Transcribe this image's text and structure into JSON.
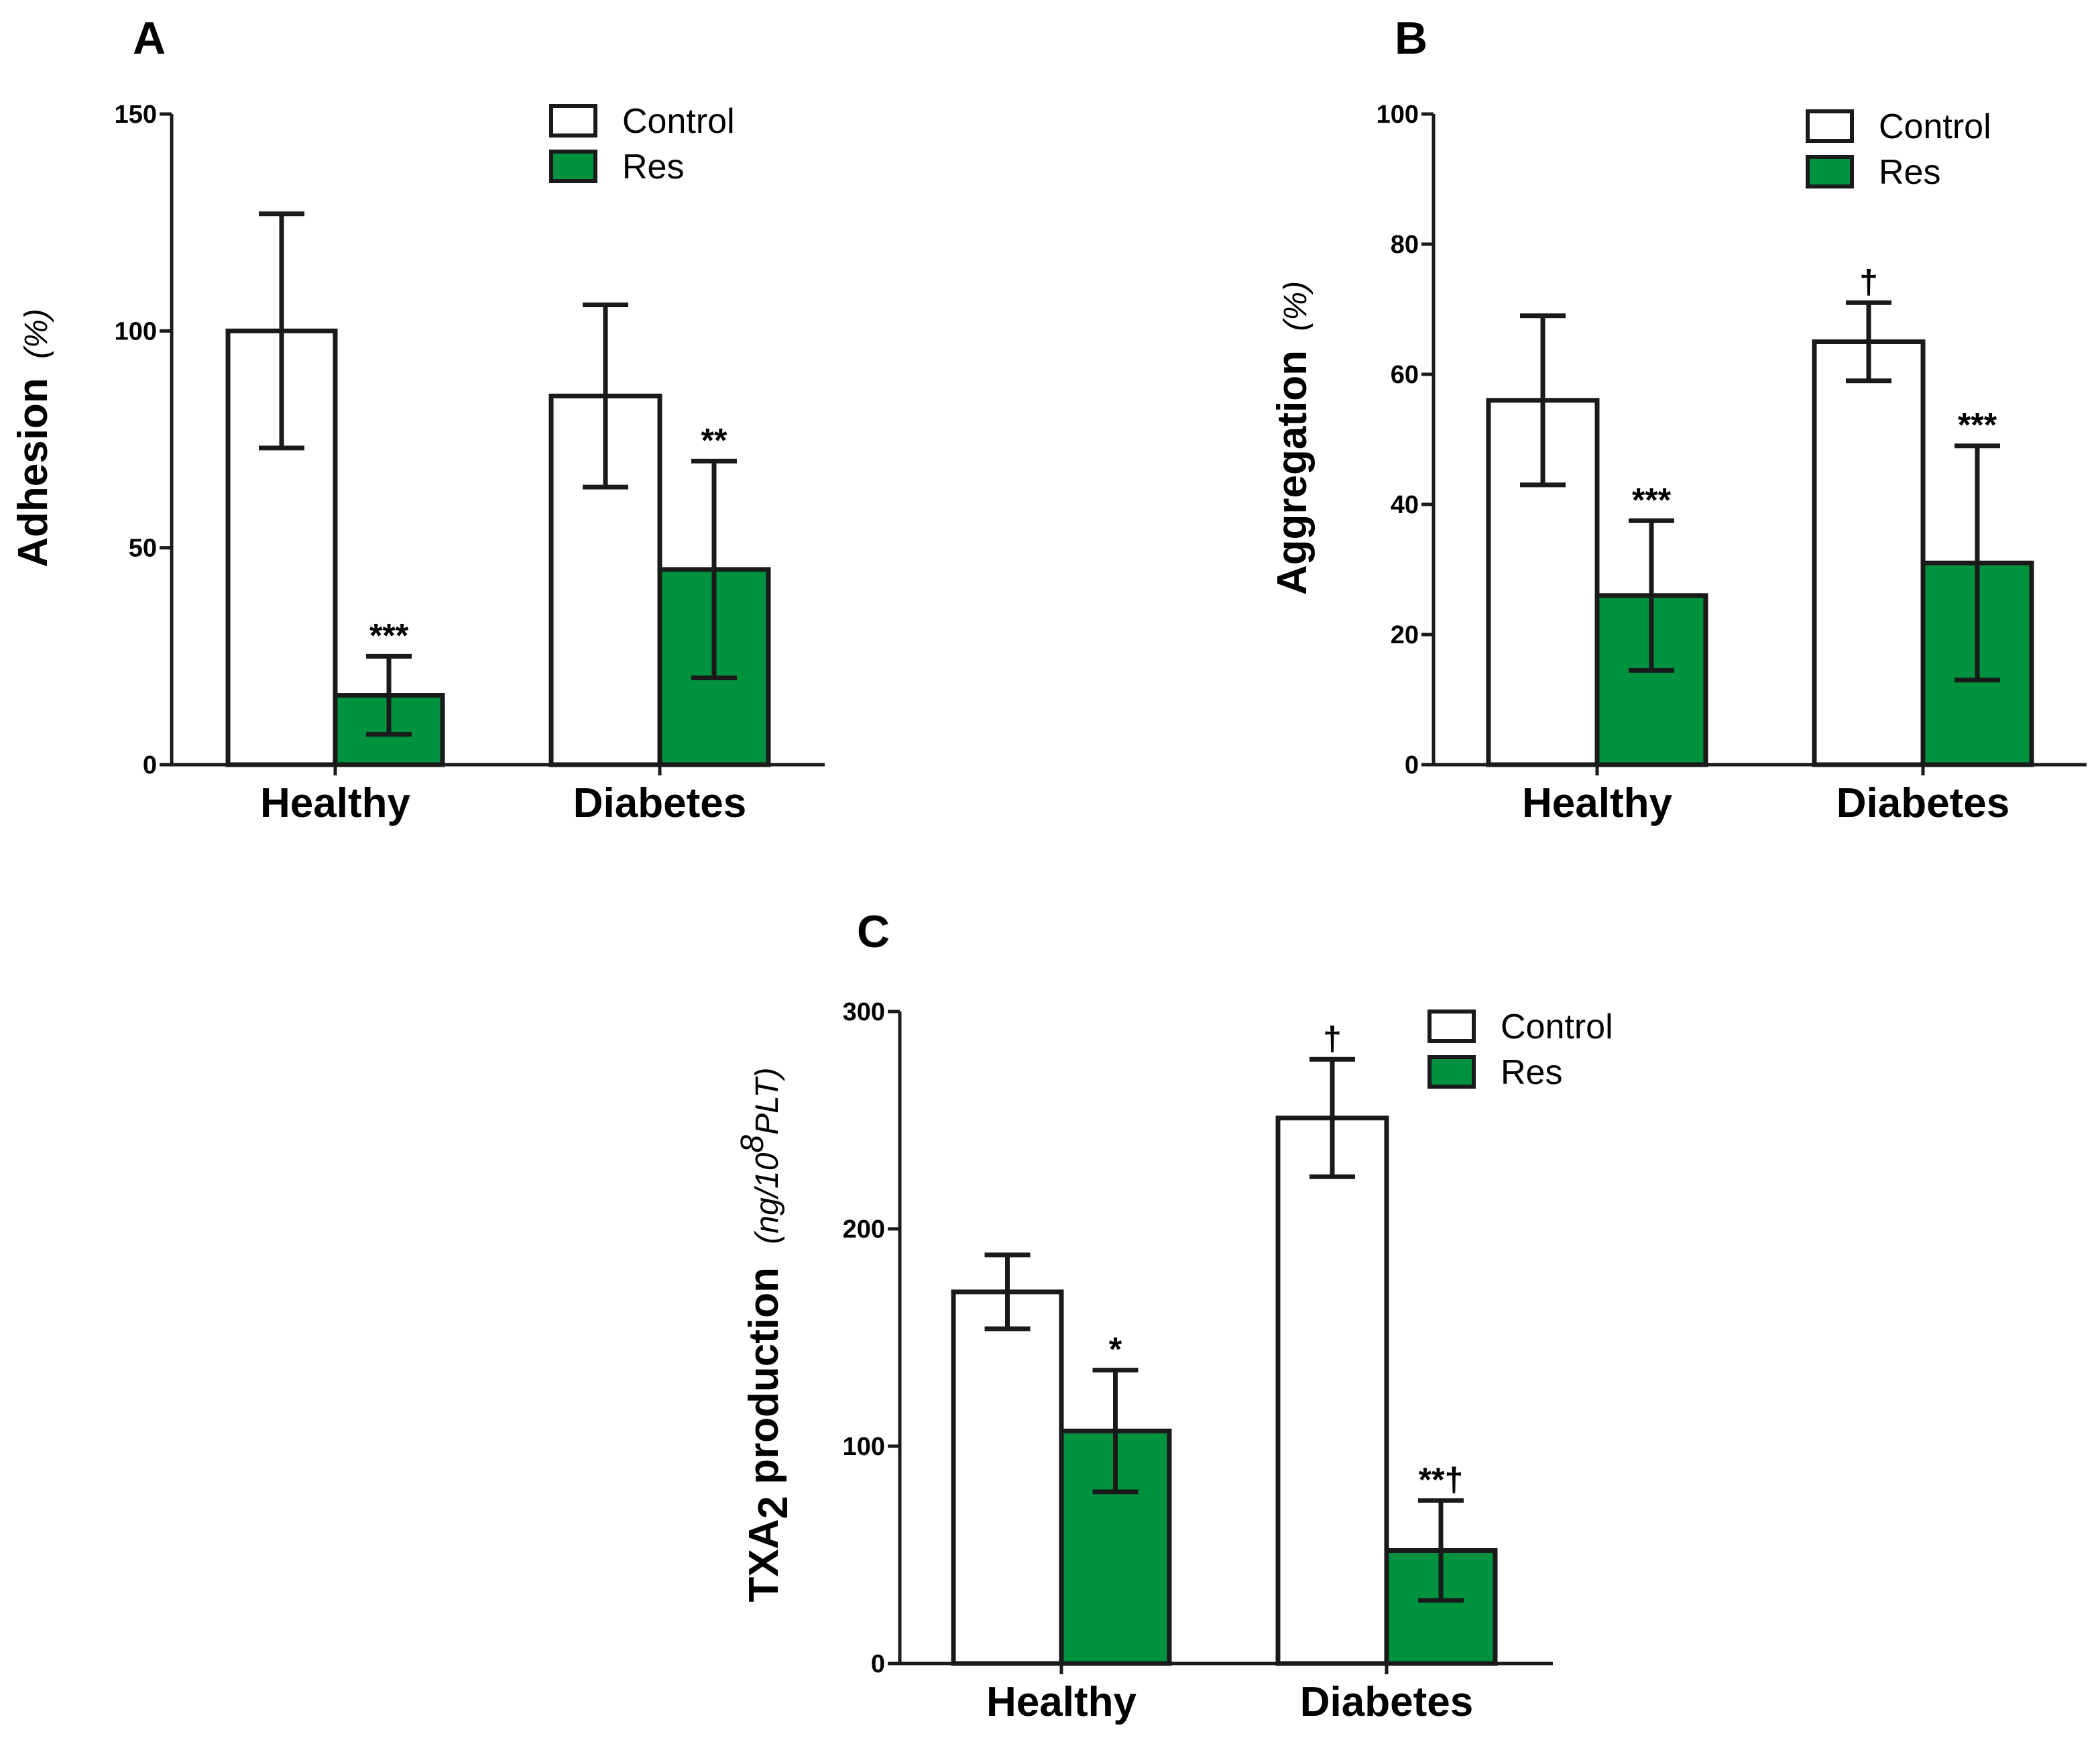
{
  "chart_data": [
    {
      "type": "bar",
      "panel": "A",
      "categories": [
        "Healthy",
        "Diabetes"
      ],
      "series": [
        {
          "name": "Control",
          "values": [
            100,
            85
          ],
          "errors": [
            27,
            21
          ]
        },
        {
          "name": "Res",
          "values": [
            16,
            45
          ],
          "errors": [
            9,
            25
          ]
        }
      ],
      "annotations": [
        {
          "category": 0,
          "series": 1,
          "text": "***"
        },
        {
          "category": 1,
          "series": 1,
          "text": "**"
        }
      ],
      "ylabel": "Adhesion",
      "yunit": "(%)",
      "ylim": [
        0,
        150
      ],
      "yticks": [
        0,
        50,
        100,
        150
      ],
      "legend": "top-right",
      "grid": false
    },
    {
      "type": "bar",
      "panel": "B",
      "categories": [
        "Healthy",
        "Diabetes"
      ],
      "series": [
        {
          "name": "Control",
          "values": [
            56,
            65
          ],
          "errors": [
            13,
            6
          ]
        },
        {
          "name": "Res",
          "values": [
            26,
            31
          ],
          "errors": [
            11.5,
            18
          ]
        }
      ],
      "annotations": [
        {
          "category": 0,
          "series": 1,
          "text": "***"
        },
        {
          "category": 1,
          "series": 0,
          "text": "†"
        },
        {
          "category": 1,
          "series": 1,
          "text": "***"
        }
      ],
      "ylabel": "Aggregation",
      "yunit": "(%)",
      "ylim": [
        0,
        100
      ],
      "yticks": [
        0,
        20,
        40,
        60,
        80,
        100
      ],
      "legend": "top-right",
      "grid": false
    },
    {
      "type": "bar",
      "panel": "C",
      "categories": [
        "Healthy",
        "Diabetes"
      ],
      "series": [
        {
          "name": "Control",
          "values": [
            171,
            251
          ],
          "errors": [
            17,
            27
          ]
        },
        {
          "name": "Res",
          "values": [
            107,
            52
          ],
          "errors": [
            28,
            23
          ]
        }
      ],
      "annotations": [
        {
          "category": 0,
          "series": 1,
          "text": "*"
        },
        {
          "category": 1,
          "series": 0,
          "text": "†"
        },
        {
          "category": 1,
          "series": 1,
          "text": "**†"
        }
      ],
      "ylabel_parts": {
        "pre": "TXA",
        "sub": "2",
        "post": " production"
      },
      "yunit_parts": {
        "pre": "(ng/10",
        "sup": "8",
        "post": "PLT)"
      },
      "ylim": [
        0,
        300
      ],
      "yticks": [
        0,
        100,
        200,
        300
      ],
      "legend": "top-right",
      "grid": false
    }
  ],
  "style": {
    "control_fill": "#ffffff",
    "res_fill": "#00923f",
    "stroke": "#1a1a1a"
  }
}
